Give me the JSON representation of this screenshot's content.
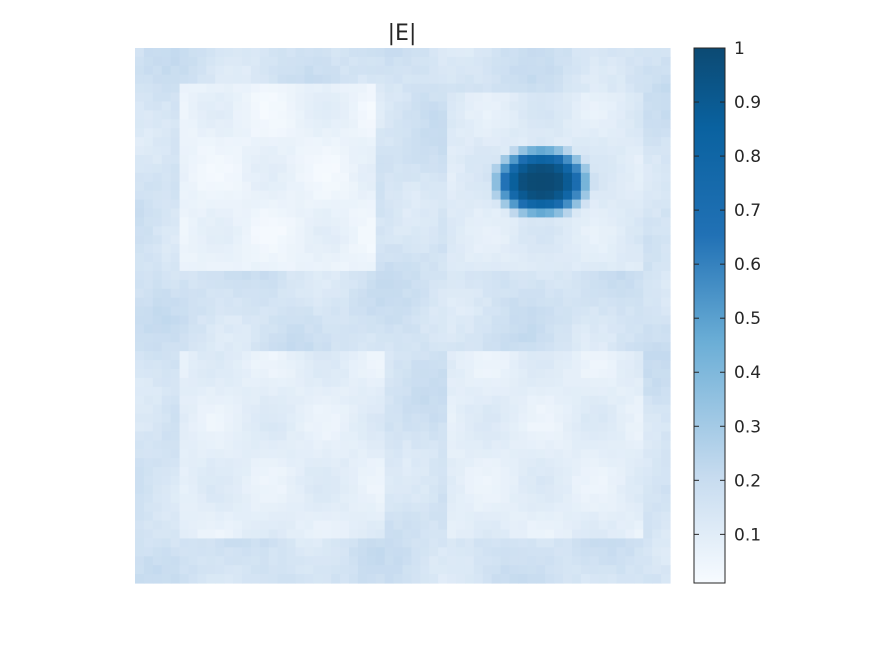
{
  "chart_data": {
    "type": "heatmap",
    "title": "|E|",
    "xlabel": "",
    "ylabel": "",
    "colorbar": {
      "range": [
        0.01,
        1
      ],
      "ticks": [
        1,
        0.9,
        0.8,
        0.7,
        0.6,
        0.5,
        0.4,
        0.3,
        0.2,
        0.1
      ],
      "tick_labels": [
        "1",
        "0.9",
        "0.8",
        "0.7",
        "0.6",
        "0.5",
        "0.4",
        "0.3",
        "0.2",
        "0.1"
      ],
      "colormap": [
        "#f7fbff",
        "#c6dbef",
        "#6baed6",
        "#2171b5",
        "#0a62a0",
        "#0c4a73"
      ]
    },
    "field": {
      "background_level": 0.15,
      "peak": {
        "u": 0.76,
        "v": 0.25,
        "value": 1.0
      },
      "quiet_regions": [
        {
          "name": "upper-left square",
          "level": 0.05
        },
        {
          "name": "upper-right square",
          "level": 0.1
        },
        {
          "name": "lower-left square",
          "level": 0.08
        },
        {
          "name": "lower-right square",
          "level": 0.08
        }
      ]
    }
  }
}
